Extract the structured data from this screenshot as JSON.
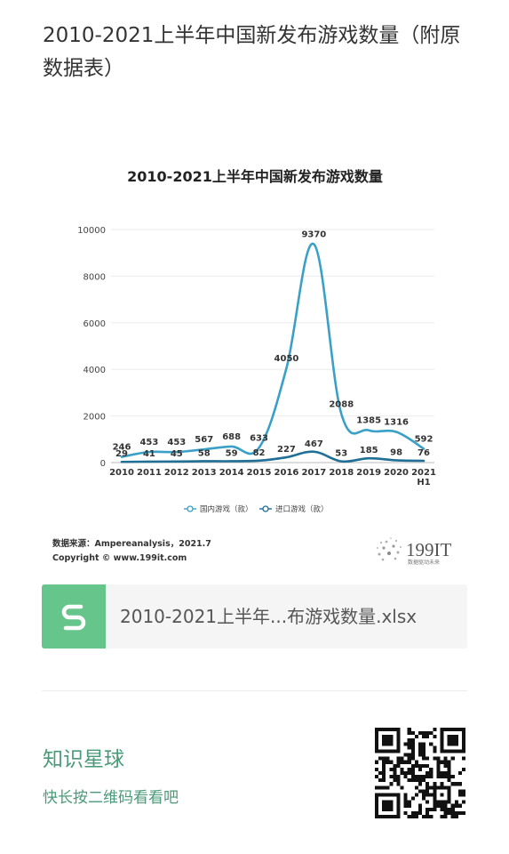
{
  "header": {
    "title": "2010-2021上半年中国新发布游戏数量（附原数据表）"
  },
  "chart_data": {
    "type": "line",
    "title": "2010-2021上半年中国新发布游戏数量",
    "categories": [
      "2010",
      "2011",
      "2012",
      "2013",
      "2014",
      "2015",
      "2016",
      "2017",
      "2018",
      "2019",
      "2020",
      "2021"
    ],
    "category_sublabels": [
      "",
      "",
      "",
      "",
      "",
      "",
      "",
      "",
      "",
      "",
      "",
      "H1"
    ],
    "series": [
      {
        "name": "国内游戏（款）",
        "values": [
          246,
          453,
          453,
          567,
          688,
          633,
          4050,
          9370,
          2088,
          1385,
          1316,
          592
        ],
        "color": "#3aa0c7"
      },
      {
        "name": "进口游戏（款）",
        "values": [
          29,
          41,
          45,
          58,
          59,
          82,
          227,
          467,
          53,
          185,
          98,
          76
        ],
        "color": "#1f6f97"
      }
    ],
    "yticks": [
      0,
      2000,
      4000,
      6000,
      8000,
      10000
    ],
    "ylim": [
      0,
      10000
    ],
    "grid": true,
    "legend": "bottom"
  },
  "chart_footer": {
    "source": "数据来源：Ampereanalysis，2021.7",
    "copyright": "Copyright © www.199it.com",
    "logo_text": "199IT",
    "logo_sub": "数据驱动未来"
  },
  "file": {
    "icon": "s-file-icon",
    "name": "2010-2021上半年...布游戏数量.xlsx"
  },
  "planet": {
    "title": "知识星球",
    "subtitle": "快长按二维码看看吧"
  }
}
